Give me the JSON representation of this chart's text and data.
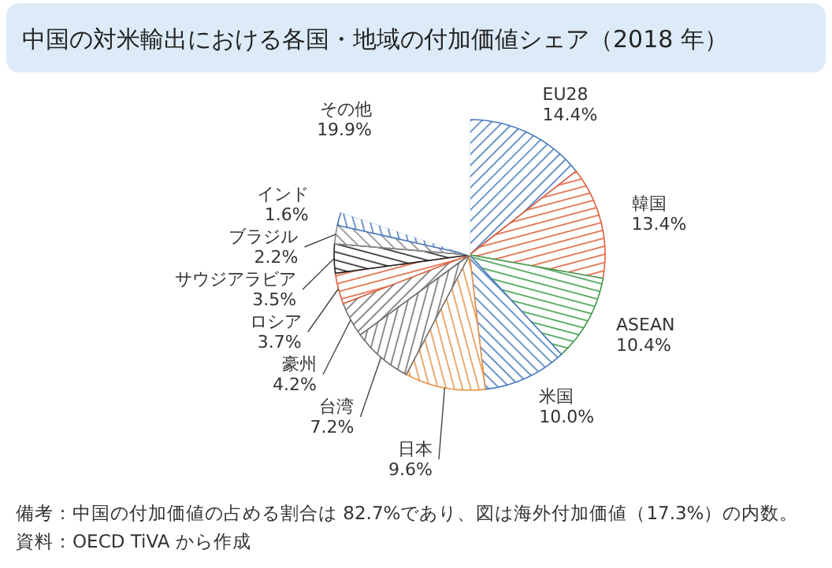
{
  "chart_data": {
    "type": "pie",
    "title": "中国の対米輸出における各国・地域の付加価値シェア（2018 年）",
    "categories": [
      "EU28",
      "韓国",
      "ASEAN",
      "米国",
      "日本",
      "台湾",
      "豪州",
      "ロシア",
      "サウジアラビア",
      "ブラジル",
      "インド",
      "その他"
    ],
    "values": [
      14.4,
      13.4,
      10.4,
      10.0,
      9.6,
      7.2,
      4.2,
      3.7,
      3.5,
      2.2,
      1.6,
      19.9
    ],
    "value_labels": [
      "14.4%",
      "13.4%",
      "10.4%",
      "10.0%",
      "9.6%",
      "7.2%",
      "4.2%",
      "3.7%",
      "3.5%",
      "2.2%",
      "1.6%",
      "19.9%"
    ],
    "colors": [
      "#4a7bbf",
      "#e0603c",
      "#3e9a4a",
      "#4a7bbf",
      "#e8954a",
      "#707070",
      "#707070",
      "#e0603c",
      "#222222",
      "#888888",
      "#4a7bbf",
      "#ffffff"
    ],
    "annotations": [
      "備考：中国の付加価値の占める割合は 82.7%であり、図は海外付加価値（17.3%）の内数。",
      "資料：OECD TiVA から作成"
    ]
  }
}
